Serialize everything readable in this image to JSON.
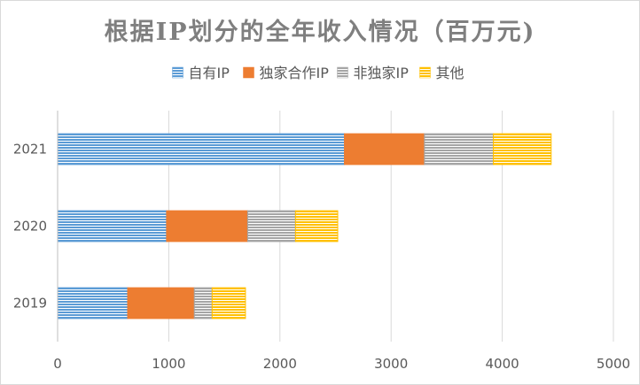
{
  "chart_data": {
    "type": "bar",
    "orientation": "horizontal",
    "stacked": true,
    "title": "根据IP划分的全年收入情况（百万元)",
    "categories": [
      "2019",
      "2020",
      "2021"
    ],
    "series": [
      {
        "name": "自有IP",
        "values": [
          630,
          980,
          2580
        ],
        "color": "#5b9bd5",
        "pattern": "stripes"
      },
      {
        "name": "独家合作IP",
        "values": [
          600,
          730,
          720
        ],
        "color": "#ed7d31",
        "pattern": "solid"
      },
      {
        "name": "非独家IP",
        "values": [
          160,
          430,
          620
        ],
        "color": "#a5a5a5",
        "pattern": "stripes"
      },
      {
        "name": "其他",
        "values": [
          300,
          380,
          520
        ],
        "color": "#ffc000",
        "pattern": "stripes"
      }
    ],
    "xlim": [
      0,
      5000
    ],
    "xticks": [
      0,
      1000,
      2000,
      3000,
      4000,
      5000
    ],
    "grid": true,
    "legend_position": "top",
    "xlabel": "",
    "ylabel": ""
  }
}
